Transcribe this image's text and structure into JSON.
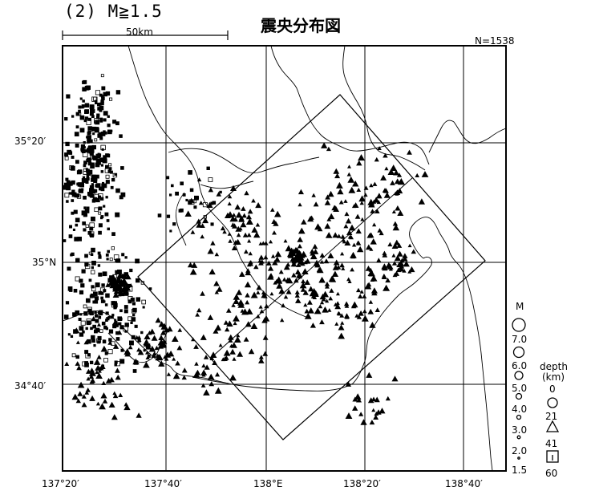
{
  "header": {
    "subtitle": "(2) M≧1.5",
    "title": "震央分布図",
    "scale_label": "50km",
    "count": "N=1538"
  },
  "axes": {
    "lat_labels": [
      "35°20′",
      "35°N",
      "34°40′"
    ],
    "lon_labels": [
      "137°20′",
      "137°40′",
      "138°E",
      "138°20′",
      "138°40′"
    ]
  },
  "legend": {
    "magnitude_title": "M",
    "magnitudes": [
      "7.0",
      "6.0",
      "5.0",
      "4.0",
      "3.0",
      "2.0",
      "1.5"
    ],
    "depth_title_1": "depth",
    "depth_title_2": "(km)",
    "depths": [
      "0",
      "21",
      "41",
      "60"
    ]
  },
  "colors": {
    "ink": "#000000",
    "paper": "#ffffff"
  },
  "symbols": [
    "circle",
    "triangle",
    "square",
    "square-with-dot"
  ]
}
